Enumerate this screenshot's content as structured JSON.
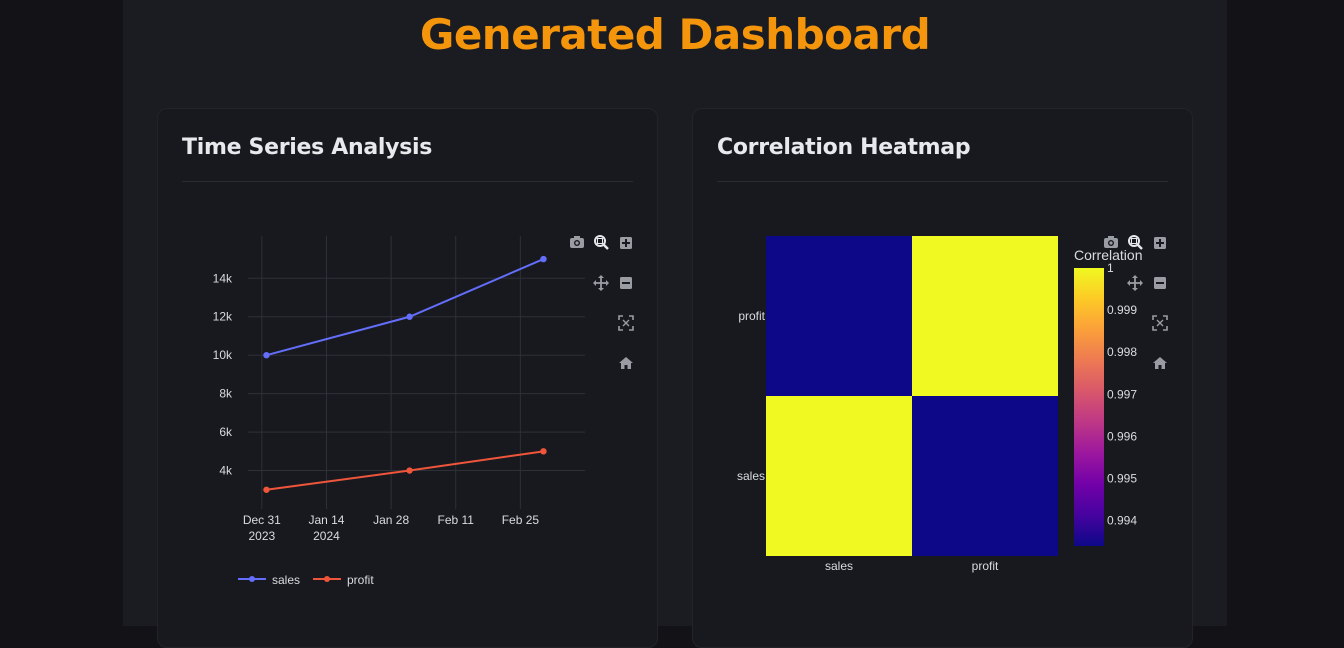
{
  "page": {
    "title": "Generated Dashboard"
  },
  "colors": {
    "accent": "#f5950b",
    "sales": "#636efa",
    "profit": "#ef553b"
  },
  "cards": [
    {
      "title": "Time Series Analysis"
    },
    {
      "title": "Correlation Heatmap"
    }
  ],
  "modebar_icons": [
    "camera-icon",
    "zoom-icon",
    "zoom-in-icon",
    "pan-icon",
    "zoom-out-icon",
    "autoscale-icon",
    "home-icon"
  ],
  "chart_data": [
    {
      "type": "line",
      "x": [
        "2024-01-01",
        "2024-02-01",
        "2024-03-01"
      ],
      "series": [
        {
          "name": "sales",
          "values": [
            10000,
            12000,
            15000
          ]
        },
        {
          "name": "profit",
          "values": [
            3000,
            4000,
            5000
          ]
        }
      ],
      "xticks": [
        {
          "date": "2023-12-31",
          "label": [
            "Dec 31",
            "2023"
          ]
        },
        {
          "date": "2024-01-14",
          "label": [
            "Jan 14",
            "2024"
          ]
        },
        {
          "date": "2024-01-28",
          "label": [
            "Jan 28"
          ]
        },
        {
          "date": "2024-02-11",
          "label": [
            "Feb 11"
          ]
        },
        {
          "date": "2024-02-25",
          "label": [
            "Feb 25"
          ]
        }
      ],
      "yticks": [
        {
          "value": 4000,
          "label": "4k"
        },
        {
          "value": 6000,
          "label": "6k"
        },
        {
          "value": 8000,
          "label": "8k"
        },
        {
          "value": 10000,
          "label": "10k"
        },
        {
          "value": 12000,
          "label": "12k"
        },
        {
          "value": 14000,
          "label": "14k"
        }
      ],
      "xlim": [
        "2023-12-28",
        "2024-03-10"
      ],
      "ylim": [
        2000,
        16200
      ],
      "grid": true,
      "legend": "bottom-left"
    },
    {
      "type": "heatmap",
      "x": [
        "sales",
        "profit"
      ],
      "y": [
        "sales",
        "profit"
      ],
      "z": [
        [
          1,
          0.9934
        ],
        [
          0.9934,
          1
        ]
      ],
      "colorbar_title": "Correlation",
      "colorbar_ticks": [
        {
          "value": 1,
          "label": "1"
        },
        {
          "value": 0.999,
          "label": "0.999"
        },
        {
          "value": 0.998,
          "label": "0.998"
        },
        {
          "value": 0.997,
          "label": "0.997"
        },
        {
          "value": 0.996,
          "label": "0.996"
        },
        {
          "value": 0.995,
          "label": "0.995"
        },
        {
          "value": 0.994,
          "label": "0.994"
        }
      ],
      "zlim": [
        0.9934,
        1
      ],
      "colorscale": [
        "#0d0887",
        "#46039f",
        "#7201a8",
        "#9c179e",
        "#bd3786",
        "#d8576b",
        "#ed7953",
        "#fb9f3a",
        "#fdca26",
        "#f0f921"
      ]
    }
  ]
}
